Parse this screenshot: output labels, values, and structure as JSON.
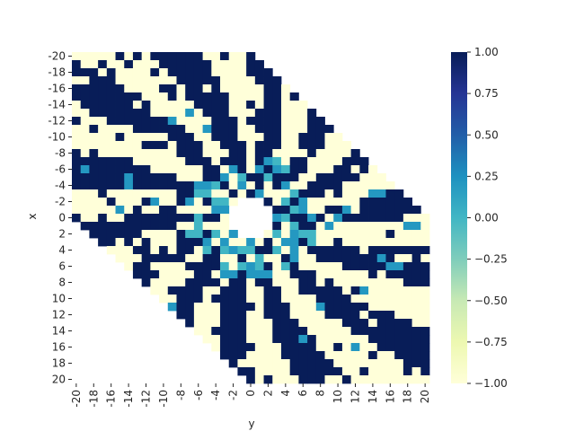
{
  "chart_data": {
    "type": "heatmap",
    "title": "",
    "xlabel": "y",
    "ylabel": "x",
    "x_values": [
      -20,
      -19,
      -18,
      -17,
      -16,
      -15,
      -14,
      -13,
      -12,
      -11,
      -10,
      -9,
      -8,
      -7,
      -6,
      -5,
      -4,
      -3,
      -2,
      -1,
      0,
      1,
      2,
      3,
      4,
      5,
      6,
      7,
      8,
      9,
      10,
      11,
      12,
      13,
      14,
      15,
      16,
      17,
      18,
      19,
      20
    ],
    "y_values": [
      -20,
      -19,
      -18,
      -17,
      -16,
      -15,
      -14,
      -13,
      -12,
      -11,
      -10,
      -9,
      -8,
      -7,
      -6,
      -5,
      -4,
      -3,
      -2,
      -1,
      0,
      1,
      2,
      3,
      4,
      5,
      6,
      7,
      8,
      9,
      10,
      11,
      12,
      13,
      14,
      15,
      16,
      17,
      18,
      19,
      20
    ],
    "x_tick_labels": [
      "-20",
      "-18",
      "-16",
      "-14",
      "-12",
      "-10",
      "-8",
      "-6",
      "-4",
      "-2",
      "0",
      "2",
      "4",
      "6",
      "8",
      "10",
      "12",
      "14",
      "16",
      "18",
      "20"
    ],
    "y_tick_labels": [
      "-20",
      "-18",
      "-16",
      "-14",
      "-12",
      "-10",
      "-8",
      "-6",
      "-4",
      "-2",
      "0",
      "2",
      "4",
      "6",
      "8",
      "10",
      "12",
      "14",
      "16",
      "18",
      "20"
    ],
    "value_range": [
      -1,
      1
    ],
    "valid_region": "|x - y| <= 20, excluding center disk of radius ~2.5",
    "dominant_values": [
      -1,
      1
    ],
    "sparse_values": [
      0,
      0.25
    ],
    "colormap": "YlGnBu",
    "colormap_stops": [
      "#ffffd9",
      "#edf8b1",
      "#c7e9b4",
      "#7fcdbb",
      "#41b6c4",
      "#1d91c0",
      "#225ea8",
      "#253494",
      "#081d58"
    ],
    "colorbar": {
      "ticks": [
        1.0,
        0.75,
        0.5,
        0.25,
        0.0,
        -0.25,
        -0.5,
        -0.75,
        -1.0
      ],
      "tick_labels": [
        "1.00",
        "0.75",
        "0.50",
        "0.25",
        "0.00",
        "−0.25",
        "−0.50",
        "−0.75",
        "−1.00"
      ]
    },
    "grid": false,
    "legend": "colorbar-right"
  }
}
